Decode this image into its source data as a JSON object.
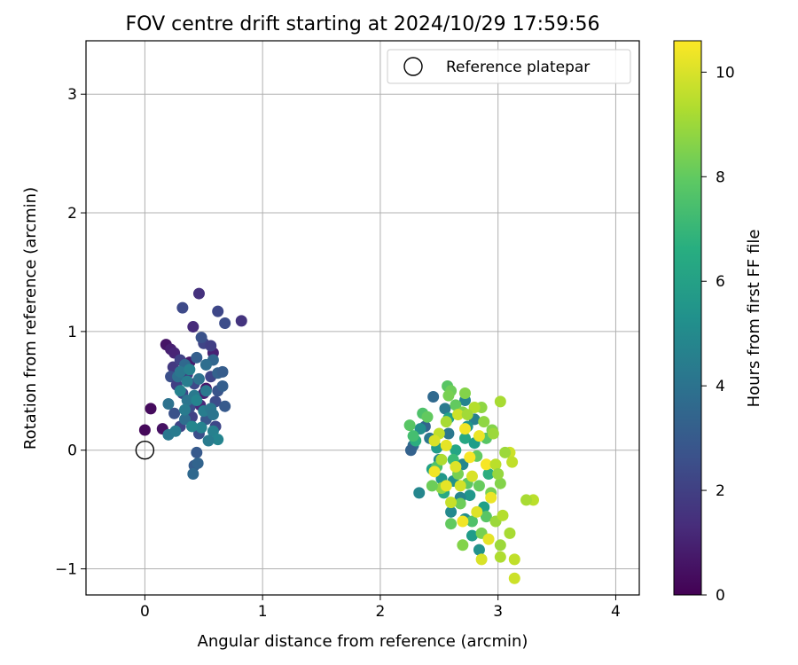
{
  "chart_data": {
    "type": "scatter",
    "title": "FOV centre drift starting at 2024/10/29 17:59:56",
    "xlabel": "Angular distance from reference (arcmin)",
    "ylabel": "Rotation from reference (arcmin)",
    "xlim": [
      -0.5,
      4.2
    ],
    "ylim": [
      -1.22,
      3.45
    ],
    "xticks": [
      0,
      1,
      2,
      3,
      4
    ],
    "yticks": [
      -1,
      0,
      1,
      2,
      3
    ],
    "grid": true,
    "legend": {
      "placement": "upper right",
      "entries": [
        "Reference platepar"
      ]
    },
    "reference_point": {
      "x": 0,
      "y": 0,
      "label": "Reference platepar"
    },
    "colorbar": {
      "label": "Hours from first FF file",
      "range": [
        0,
        10.6
      ],
      "ticks": [
        0,
        2,
        4,
        6,
        8,
        10
      ],
      "colormap": "viridis"
    },
    "series": [
      {
        "points": [
          {
            "x": 0,
            "y": 0.17,
            "c": 0.2
          },
          {
            "x": 0.05,
            "y": 0.35,
            "c": 0.3
          },
          {
            "x": 0.15,
            "y": 0.18,
            "c": 0.5
          },
          {
            "x": 0.18,
            "y": 0.89,
            "c": 0.6
          },
          {
            "x": 0.22,
            "y": 0.85,
            "c": 0.9
          },
          {
            "x": 0.25,
            "y": 0.82,
            "c": 1.1
          },
          {
            "x": 0.38,
            "y": 0.74,
            "c": 0.8
          },
          {
            "x": 0.41,
            "y": 1.04,
            "c": 1.3
          },
          {
            "x": 0.46,
            "y": 1.32,
            "c": 1.5
          },
          {
            "x": 0.58,
            "y": 0.82,
            "c": 1.0
          },
          {
            "x": 0.52,
            "y": 0.52,
            "c": 0.7
          },
          {
            "x": 0.5,
            "y": 0.48,
            "c": 1.0
          },
          {
            "x": 0.47,
            "y": 0.38,
            "c": 1.3
          },
          {
            "x": 0.32,
            "y": 1.2,
            "c": 2.4
          },
          {
            "x": 0.82,
            "y": 1.09,
            "c": 1.6
          },
          {
            "x": 0.62,
            "y": 1.17,
            "c": 2.3
          },
          {
            "x": 0.68,
            "y": 1.07,
            "c": 2.5
          },
          {
            "x": 0.5,
            "y": 0.9,
            "c": 2.2
          },
          {
            "x": 0.56,
            "y": 0.88,
            "c": 2.0
          },
          {
            "x": 0.48,
            "y": 0.95,
            "c": 2.7
          },
          {
            "x": 0.24,
            "y": 0.7,
            "c": 1.8
          },
          {
            "x": 0.3,
            "y": 0.76,
            "c": 2.1
          },
          {
            "x": 0.22,
            "y": 0.62,
            "c": 2.6
          },
          {
            "x": 0.27,
            "y": 0.55,
            "c": 2.0
          },
          {
            "x": 0.32,
            "y": 0.48,
            "c": 2.3
          },
          {
            "x": 0.36,
            "y": 0.64,
            "c": 1.9
          },
          {
            "x": 0.42,
            "y": 0.56,
            "c": 2.4
          },
          {
            "x": 0.56,
            "y": 0.62,
            "c": 2.2
          },
          {
            "x": 0.62,
            "y": 0.5,
            "c": 2.8
          },
          {
            "x": 0.6,
            "y": 0.41,
            "c": 2.5
          },
          {
            "x": 0.3,
            "y": 0.2,
            "c": 2.2
          },
          {
            "x": 0.25,
            "y": 0.31,
            "c": 2.7
          },
          {
            "x": 0.4,
            "y": 0.28,
            "c": 2.1
          },
          {
            "x": 0.46,
            "y": 0.14,
            "c": 2.6
          },
          {
            "x": 0.52,
            "y": 0.26,
            "c": 2.9
          },
          {
            "x": 0.6,
            "y": 0.2,
            "c": 2.3
          },
          {
            "x": 0.38,
            "y": 0.36,
            "c": 2.5
          },
          {
            "x": 0.44,
            "y": -0.02,
            "c": 3.0
          },
          {
            "x": 0.42,
            "y": -0.13,
            "c": 3.1
          },
          {
            "x": 0.45,
            "y": -0.11,
            "c": 3.4
          },
          {
            "x": 0.41,
            "y": -0.2,
            "c": 3.6
          },
          {
            "x": 0.68,
            "y": 0.37,
            "c": 3.0
          },
          {
            "x": 0.66,
            "y": 0.54,
            "c": 3.2
          },
          {
            "x": 0.62,
            "y": 0.65,
            "c": 3.3
          },
          {
            "x": 0.66,
            "y": 0.66,
            "c": 3.1
          },
          {
            "x": 0.58,
            "y": 0.76,
            "c": 3.5
          },
          {
            "x": 0.52,
            "y": 0.72,
            "c": 3.8
          },
          {
            "x": 0.44,
            "y": 0.78,
            "c": 3.2
          },
          {
            "x": 0.34,
            "y": 0.72,
            "c": 3.6
          },
          {
            "x": 0.28,
            "y": 0.62,
            "c": 3.9
          },
          {
            "x": 0.2,
            "y": 0.39,
            "c": 4.0
          },
          {
            "x": 0.2,
            "y": 0.13,
            "c": 4.2
          },
          {
            "x": 0.26,
            "y": 0.16,
            "c": 4.4
          },
          {
            "x": 0.34,
            "y": 0.26,
            "c": 3.8
          },
          {
            "x": 0.36,
            "y": 0.42,
            "c": 4.1
          },
          {
            "x": 0.42,
            "y": 0.46,
            "c": 4.3
          },
          {
            "x": 0.46,
            "y": 0.6,
            "c": 4.0
          },
          {
            "x": 0.5,
            "y": 0.33,
            "c": 4.5
          },
          {
            "x": 0.56,
            "y": 0.35,
            "c": 4.2
          },
          {
            "x": 0.58,
            "y": 0.16,
            "c": 4.6
          },
          {
            "x": 0.62,
            "y": 0.09,
            "c": 4.8
          },
          {
            "x": 0.54,
            "y": 0.08,
            "c": 4.4
          },
          {
            "x": 0.48,
            "y": 0.19,
            "c": 4.7
          },
          {
            "x": 0.4,
            "y": 0.2,
            "c": 4.9
          },
          {
            "x": 0.36,
            "y": 0.58,
            "c": 4.5
          },
          {
            "x": 0.3,
            "y": 0.66,
            "c": 4.2
          },
          {
            "x": 0.38,
            "y": 0.68,
            "c": 4.6
          },
          {
            "x": 0.44,
            "y": 0.42,
            "c": 4.8
          },
          {
            "x": 0.52,
            "y": 0.5,
            "c": 4.3
          },
          {
            "x": 0.58,
            "y": 0.3,
            "c": 4.1
          },
          {
            "x": 0.3,
            "y": 0.5,
            "c": 4.7
          },
          {
            "x": 0.34,
            "y": 0.34,
            "c": 4.4
          },
          {
            "x": 2.33,
            "y": -0.36,
            "c": 4.9
          },
          {
            "x": 2.45,
            "y": 0.45,
            "c": 3.6
          },
          {
            "x": 2.38,
            "y": 0.2,
            "c": 3.4
          },
          {
            "x": 2.28,
            "y": 0.04,
            "c": 3.8
          },
          {
            "x": 2.26,
            "y": 0.0,
            "c": 3.3
          },
          {
            "x": 2.42,
            "y": 0.1,
            "c": 4.2
          },
          {
            "x": 2.55,
            "y": 0.35,
            "c": 4.4
          },
          {
            "x": 2.72,
            "y": 0.42,
            "c": 4.8
          },
          {
            "x": 2.8,
            "y": 0.26,
            "c": 4.6
          },
          {
            "x": 2.58,
            "y": 0.14,
            "c": 4.2
          },
          {
            "x": 2.34,
            "y": 0.18,
            "c": 5.2
          },
          {
            "x": 2.5,
            "y": -0.08,
            "c": 5.0
          },
          {
            "x": 2.62,
            "y": -0.26,
            "c": 5.4
          },
          {
            "x": 2.7,
            "y": -0.12,
            "c": 4.9
          },
          {
            "x": 2.76,
            "y": -0.38,
            "c": 5.6
          },
          {
            "x": 2.6,
            "y": -0.52,
            "c": 5.0
          },
          {
            "x": 2.72,
            "y": -0.58,
            "c": 5.2
          },
          {
            "x": 2.78,
            "y": -0.72,
            "c": 5.8
          },
          {
            "x": 2.84,
            "y": -0.84,
            "c": 5.4
          },
          {
            "x": 2.68,
            "y": -0.4,
            "c": 4.8
          },
          {
            "x": 2.52,
            "y": -0.24,
            "c": 5.6
          },
          {
            "x": 2.58,
            "y": 0.27,
            "c": 6.0
          },
          {
            "x": 2.72,
            "y": 0.1,
            "c": 6.3
          },
          {
            "x": 2.48,
            "y": 0.02,
            "c": 5.8
          },
          {
            "x": 2.44,
            "y": -0.16,
            "c": 6.1
          },
          {
            "x": 2.54,
            "y": -0.36,
            "c": 6.4
          },
          {
            "x": 2.88,
            "y": -0.48,
            "c": 6.0
          },
          {
            "x": 2.92,
            "y": -0.2,
            "c": 6.6
          },
          {
            "x": 2.8,
            "y": 0.06,
            "c": 5.9
          },
          {
            "x": 2.64,
            "y": 0.0,
            "c": 6.2
          },
          {
            "x": 2.74,
            "y": 0.2,
            "c": 5.5
          },
          {
            "x": 2.3,
            "y": 0.08,
            "c": 6.6
          },
          {
            "x": 2.25,
            "y": 0.21,
            "c": 7.8
          },
          {
            "x": 2.28,
            "y": 0.12,
            "c": 7.4
          },
          {
            "x": 2.36,
            "y": 0.31,
            "c": 7.6
          },
          {
            "x": 2.4,
            "y": 0.28,
            "c": 8.0
          },
          {
            "x": 2.57,
            "y": 0.54,
            "c": 7.8
          },
          {
            "x": 2.6,
            "y": 0.5,
            "c": 8.2
          },
          {
            "x": 2.58,
            "y": 0.46,
            "c": 8.4
          },
          {
            "x": 2.64,
            "y": 0.38,
            "c": 8.0
          },
          {
            "x": 2.7,
            "y": 0.32,
            "c": 8.6
          },
          {
            "x": 2.86,
            "y": 0.36,
            "c": 8.8
          },
          {
            "x": 2.95,
            "y": 0.17,
            "c": 8.6
          },
          {
            "x": 3.02,
            "y": 0.41,
            "c": 9.2
          },
          {
            "x": 2.9,
            "y": 0.1,
            "c": 7.8
          },
          {
            "x": 2.82,
            "y": -0.05,
            "c": 8.0
          },
          {
            "x": 2.66,
            "y": -0.2,
            "c": 8.4
          },
          {
            "x": 2.52,
            "y": -0.32,
            "c": 8.8
          },
          {
            "x": 2.44,
            "y": -0.3,
            "c": 8.2
          },
          {
            "x": 2.48,
            "y": -0.14,
            "c": 7.6
          },
          {
            "x": 2.62,
            "y": -0.08,
            "c": 7.2
          },
          {
            "x": 2.74,
            "y": -0.28,
            "c": 7.9
          },
          {
            "x": 2.84,
            "y": -0.3,
            "c": 8.1
          },
          {
            "x": 2.94,
            "y": -0.36,
            "c": 8.4
          },
          {
            "x": 3.02,
            "y": -0.28,
            "c": 8.6
          },
          {
            "x": 2.9,
            "y": -0.56,
            "c": 7.8
          },
          {
            "x": 2.78,
            "y": -0.6,
            "c": 7.6
          },
          {
            "x": 2.68,
            "y": -0.45,
            "c": 8.2
          },
          {
            "x": 2.6,
            "y": -0.62,
            "c": 8.0
          },
          {
            "x": 2.7,
            "y": -0.8,
            "c": 8.6
          },
          {
            "x": 2.86,
            "y": -0.7,
            "c": 8.4
          },
          {
            "x": 2.98,
            "y": -0.6,
            "c": 9.0
          },
          {
            "x": 3.04,
            "y": -0.55,
            "c": 9.4
          },
          {
            "x": 3.1,
            "y": -0.7,
            "c": 9.2
          },
          {
            "x": 3.02,
            "y": -0.8,
            "c": 9.0
          },
          {
            "x": 3.02,
            "y": -0.9,
            "c": 9.3
          },
          {
            "x": 3.14,
            "y": -0.92,
            "c": 9.6
          },
          {
            "x": 3.14,
            "y": -1.08,
            "c": 9.8
          },
          {
            "x": 3.3,
            "y": -0.42,
            "c": 9.5
          },
          {
            "x": 3.24,
            "y": -0.42,
            "c": 9.2
          },
          {
            "x": 3.1,
            "y": -0.02,
            "c": 9.8
          },
          {
            "x": 3.12,
            "y": -0.1,
            "c": 9.6
          },
          {
            "x": 3.06,
            "y": -0.02,
            "c": 9.0
          },
          {
            "x": 2.96,
            "y": 0.14,
            "c": 9.0
          },
          {
            "x": 2.88,
            "y": 0.24,
            "c": 8.8
          },
          {
            "x": 2.8,
            "y": 0.36,
            "c": 9.4
          },
          {
            "x": 2.72,
            "y": 0.48,
            "c": 8.6
          },
          {
            "x": 2.66,
            "y": 0.3,
            "c": 9.8
          },
          {
            "x": 2.56,
            "y": 0.24,
            "c": 9.2
          },
          {
            "x": 2.5,
            "y": 0.14,
            "c": 9.6
          },
          {
            "x": 2.46,
            "y": 0.08,
            "c": 10.0
          },
          {
            "x": 2.56,
            "y": 0.04,
            "c": 10.2
          },
          {
            "x": 2.72,
            "y": 0.18,
            "c": 10.4
          },
          {
            "x": 2.84,
            "y": 0.12,
            "c": 10.3
          },
          {
            "x": 2.76,
            "y": -0.06,
            "c": 10.5
          },
          {
            "x": 2.64,
            "y": -0.14,
            "c": 10.1
          },
          {
            "x": 2.46,
            "y": -0.18,
            "c": 10.4
          },
          {
            "x": 2.56,
            "y": -0.3,
            "c": 10.2
          },
          {
            "x": 2.78,
            "y": -0.22,
            "c": 10.0
          },
          {
            "x": 2.9,
            "y": -0.12,
            "c": 10.5
          },
          {
            "x": 2.94,
            "y": -0.4,
            "c": 10.3
          },
          {
            "x": 2.82,
            "y": -0.52,
            "c": 10.1
          },
          {
            "x": 2.7,
            "y": -0.6,
            "c": 10.4
          },
          {
            "x": 2.92,
            "y": -0.75,
            "c": 10.2
          },
          {
            "x": 2.86,
            "y": -0.92,
            "c": 10.0
          },
          {
            "x": 2.68,
            "y": -0.3,
            "c": 9.9
          },
          {
            "x": 2.6,
            "y": -0.44,
            "c": 9.7
          },
          {
            "x": 2.52,
            "y": -0.08,
            "c": 9.3
          },
          {
            "x": 2.74,
            "y": 0.3,
            "c": 9.1
          },
          {
            "x": 2.98,
            "y": -0.12,
            "c": 9.5
          },
          {
            "x": 3.0,
            "y": -0.2,
            "c": 8.9
          }
        ]
      }
    ]
  }
}
